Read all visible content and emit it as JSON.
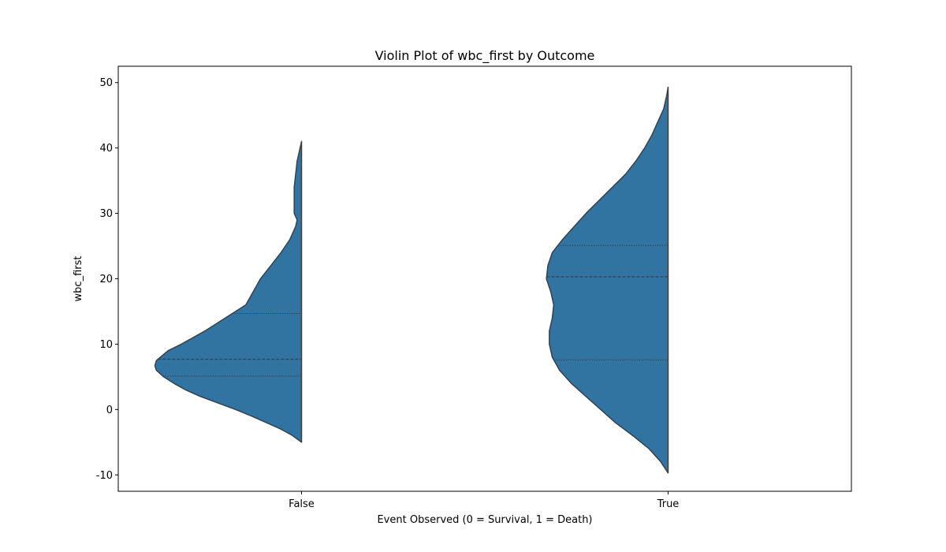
{
  "chart_data": {
    "type": "violin",
    "title": "Violin Plot of wbc_first by Outcome",
    "xlabel": "Event Observed (0 = Survival, 1 = Death)",
    "ylabel": "wbc_first",
    "categories": [
      "False",
      "True"
    ],
    "ylim": [
      -12.5,
      52.5
    ],
    "yticks": [
      -10,
      0,
      10,
      20,
      30,
      40,
      50
    ],
    "split": "left-half",
    "colors": {
      "fill": "#3274a1",
      "edge": "#3f3f3f"
    },
    "grid": false,
    "violins": [
      {
        "category": "False",
        "min": -5,
        "max": 41,
        "max_width": 0.8,
        "quartiles": {
          "q1": 5.1,
          "median": 7.7,
          "q3": 14.7
        },
        "density": [
          [
            -5,
            0.0
          ],
          [
            -4,
            0.06
          ],
          [
            -3,
            0.14
          ],
          [
            -2,
            0.24
          ],
          [
            -1,
            0.34
          ],
          [
            0,
            0.45
          ],
          [
            1,
            0.57
          ],
          [
            2,
            0.69
          ],
          [
            3,
            0.79
          ],
          [
            4,
            0.87
          ],
          [
            5,
            0.94
          ],
          [
            6,
            0.99
          ],
          [
            6.7,
            1.0
          ],
          [
            7.5,
            0.99
          ],
          [
            9,
            0.91
          ],
          [
            10,
            0.82
          ],
          [
            12,
            0.66
          ],
          [
            14,
            0.52
          ],
          [
            16,
            0.38
          ],
          [
            18,
            0.33
          ],
          [
            20,
            0.28
          ],
          [
            22,
            0.21
          ],
          [
            24,
            0.14
          ],
          [
            26,
            0.08
          ],
          [
            28,
            0.04
          ],
          [
            29,
            0.03
          ],
          [
            30,
            0.05
          ],
          [
            32,
            0.05
          ],
          [
            34,
            0.05
          ],
          [
            36,
            0.04
          ],
          [
            38,
            0.03
          ],
          [
            40,
            0.01
          ],
          [
            41,
            0.0
          ]
        ]
      },
      {
        "category": "True",
        "min": -9.7,
        "max": 49.3,
        "max_width": 0.8,
        "quartiles": {
          "q1": 7.6,
          "median": 20.3,
          "q3": 25.1
        },
        "density": [
          [
            -9.7,
            0.0
          ],
          [
            -8,
            0.05
          ],
          [
            -6,
            0.13
          ],
          [
            -4,
            0.24
          ],
          [
            -2,
            0.36
          ],
          [
            0,
            0.46
          ],
          [
            2,
            0.56
          ],
          [
            4,
            0.66
          ],
          [
            6,
            0.74
          ],
          [
            8,
            0.79
          ],
          [
            10,
            0.81
          ],
          [
            12,
            0.81
          ],
          [
            14,
            0.79
          ],
          [
            16,
            0.78
          ],
          [
            18,
            0.8
          ],
          [
            20,
            0.83
          ],
          [
            22,
            0.82
          ],
          [
            24,
            0.79
          ],
          [
            26,
            0.72
          ],
          [
            28,
            0.64
          ],
          [
            30,
            0.56
          ],
          [
            32,
            0.47
          ],
          [
            34,
            0.38
          ],
          [
            36,
            0.29
          ],
          [
            38,
            0.22
          ],
          [
            40,
            0.16
          ],
          [
            42,
            0.11
          ],
          [
            44,
            0.07
          ],
          [
            46,
            0.03
          ],
          [
            48,
            0.01
          ],
          [
            49.3,
            0.0
          ]
        ]
      }
    ]
  }
}
